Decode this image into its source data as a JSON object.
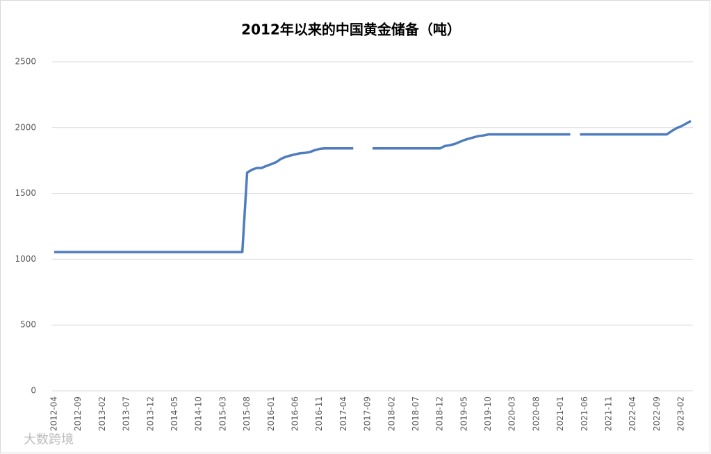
{
  "chart_data": {
    "type": "line",
    "title": "2012年以来的中国黄金储备（吨）",
    "watermark": "大数跨境",
    "categories": [
      "2012-04",
      null,
      null,
      null,
      null,
      "2012-09",
      null,
      null,
      null,
      null,
      "2013-02",
      null,
      null,
      null,
      null,
      "2013-07",
      null,
      null,
      null,
      null,
      "2013-12",
      null,
      null,
      null,
      null,
      "2014-05",
      null,
      null,
      null,
      null,
      "2014-10",
      null,
      null,
      null,
      null,
      "2015-03",
      null,
      null,
      null,
      null,
      "2015-08",
      null,
      null,
      null,
      null,
      "2016-01",
      null,
      null,
      null,
      null,
      "2016-06",
      null,
      null,
      null,
      null,
      "2016-11",
      null,
      null,
      null,
      null,
      "2017-04",
      null,
      null,
      null,
      null,
      "2017-09",
      null,
      null,
      null,
      null,
      "2018-02",
      null,
      null,
      null,
      null,
      "2018-07",
      null,
      null,
      null,
      null,
      "2018-12",
      null,
      null,
      null,
      null,
      "2019-05",
      null,
      null,
      null,
      null,
      "2019-10",
      null,
      null,
      null,
      null,
      "2020-03",
      null,
      null,
      null,
      null,
      "2020-08",
      null,
      null,
      null,
      null,
      "2021-01",
      null,
      null,
      null,
      null,
      "2021-06",
      null,
      null,
      null,
      null,
      "2021-11",
      null,
      null,
      null,
      null,
      "2022-04",
      null,
      null,
      null,
      null,
      "2022-09",
      null,
      null,
      null,
      null,
      "2023-02",
      null,
      null
    ],
    "series": [
      {
        "color": "#4f7cbf",
        "values": [
          1054,
          1054,
          1054,
          1054,
          1054,
          1054,
          1054,
          1054,
          1054,
          1054,
          1054,
          1054,
          1054,
          1054,
          1054,
          1054,
          1054,
          1054,
          1054,
          1054,
          1054,
          1054,
          1054,
          1054,
          1054,
          1054,
          1054,
          1054,
          1054,
          1054,
          1054,
          1054,
          1054,
          1054,
          1054,
          1054,
          1054,
          1054,
          1054,
          1054,
          1658,
          1680,
          1693,
          1693,
          1709,
          1722,
          1737,
          1762,
          1778,
          1788,
          1797,
          1805,
          1808,
          1814,
          1828,
          1838,
          1842,
          1842,
          1842,
          1842,
          1842,
          1842,
          1842,
          null,
          null,
          null,
          1842,
          1842,
          1842,
          1842,
          1842,
          1842,
          1842,
          1842,
          1842,
          1842,
          1842,
          1842,
          1842,
          1842,
          1842,
          1860,
          1866,
          1875,
          1890,
          1905,
          1916,
          1926,
          1936,
          1940,
          1948,
          1948,
          1948,
          1948,
          1948,
          1948,
          1948,
          1948,
          1948,
          1948,
          1948,
          1948,
          1948,
          1948,
          1948,
          1948,
          1948,
          1948,
          null,
          1948,
          1948,
          1948,
          1948,
          1948,
          1948,
          1948,
          1948,
          1948,
          1948,
          1948,
          1948,
          1948,
          1948,
          1948,
          1948,
          1948,
          1948,
          1948,
          1973,
          1995,
          2010,
          2030,
          2050
        ]
      }
    ],
    "ylim": [
      0,
      2500
    ],
    "yticks": [
      0,
      500,
      1000,
      1500,
      2000,
      2500
    ],
    "grid": true
  }
}
